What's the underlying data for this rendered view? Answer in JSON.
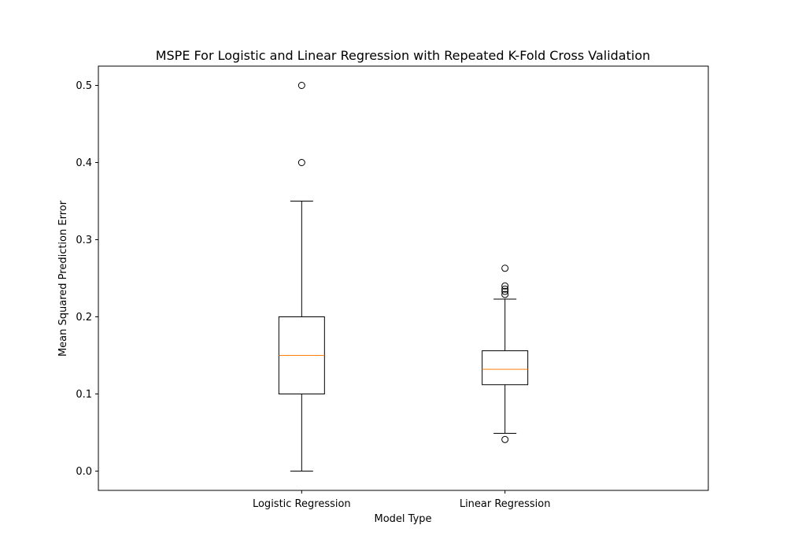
{
  "chart_data": {
    "type": "boxplot",
    "title": "MSPE For Logistic and Linear Regression with Repeated K-Fold Cross Validation",
    "xlabel": "Model Type",
    "ylabel": "Mean Squared Prediction Error",
    "ylim": [
      -0.025,
      0.525
    ],
    "yticks": [
      0.0,
      0.1,
      0.2,
      0.3,
      0.4,
      0.5
    ],
    "ytick_labels": [
      "0.0",
      "0.1",
      "0.2",
      "0.3",
      "0.4",
      "0.5"
    ],
    "categories": [
      "Logistic Regression",
      "Linear Regression"
    ],
    "grid": false,
    "boxes": [
      {
        "whisker_low": 0.0,
        "q1": 0.1,
        "median": 0.15,
        "q3": 0.2,
        "whisker_high": 0.35,
        "outliers": [
          0.5,
          0.4
        ]
      },
      {
        "whisker_low": 0.049,
        "q1": 0.112,
        "median": 0.132,
        "q3": 0.156,
        "whisker_high": 0.223,
        "outliers": [
          0.263,
          0.24,
          0.236,
          0.233,
          0.229,
          0.041
        ]
      }
    ],
    "colors": {
      "box": "#000000",
      "median": "#ff7f0e",
      "outlier": "#000000"
    }
  }
}
